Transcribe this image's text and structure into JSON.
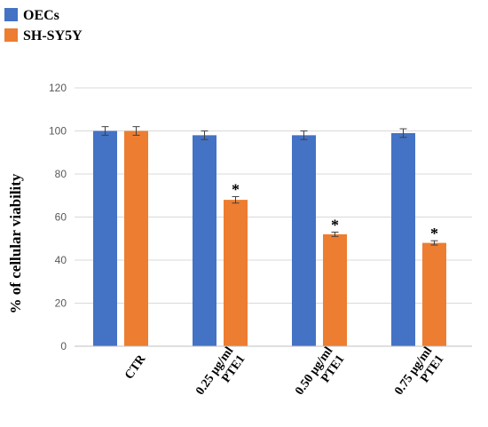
{
  "chart_data": {
    "type": "bar",
    "categories": [
      [
        "CTR"
      ],
      [
        "0.25 μg/ml",
        "PTE1"
      ],
      [
        "0.50 μg/ml",
        "PTE1"
      ],
      [
        "0.75 μg/ml",
        "PTE1"
      ]
    ],
    "series": [
      {
        "name": "OECs",
        "color": "#4472c4",
        "values": [
          100,
          98,
          98,
          99
        ],
        "errors": [
          2,
          2,
          2,
          2
        ],
        "significant": [
          false,
          false,
          false,
          false
        ]
      },
      {
        "name": "SH-SY5Y",
        "color": "#ed7d31",
        "values": [
          100,
          68,
          52,
          48
        ],
        "errors": [
          2,
          1.5,
          1,
          1
        ],
        "significant": [
          false,
          true,
          true,
          true
        ]
      }
    ],
    "ylabel": "% of  cellular viability",
    "xlabel": "",
    "ylim": [
      0,
      120
    ],
    "yticks": [
      0,
      20,
      40,
      60,
      80,
      100,
      120
    ],
    "significance_marker": "*",
    "grid": true,
    "legend_position": "top-left"
  }
}
